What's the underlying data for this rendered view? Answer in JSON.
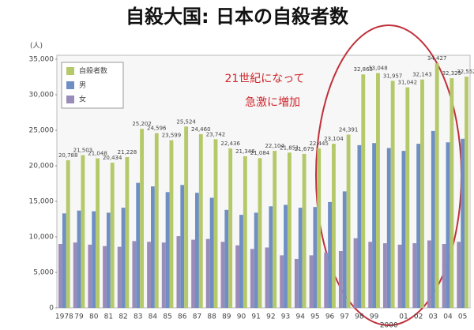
{
  "chart_data": {
    "type": "bar",
    "title": "自殺大国: 日本の自殺者数",
    "y_label": "(人)",
    "annotation": [
      "21世紀になって",
      "急激に増加"
    ],
    "categories": [
      "1978",
      "79",
      "80",
      "81",
      "82",
      "83",
      "84",
      "85",
      "86",
      "87",
      "88",
      "89",
      "90",
      "91",
      "92",
      "93",
      "94",
      "95",
      "96",
      "97",
      "98",
      "99",
      "2000",
      "01",
      "02",
      "03",
      "04",
      "05"
    ],
    "series": [
      {
        "name": "自殺者数",
        "color": "#b5c96a",
        "values": [
          20788,
          21503,
          21048,
          20434,
          21228,
          25202,
          24596,
          23599,
          25524,
          24460,
          23742,
          22436,
          21346,
          21084,
          22104,
          21851,
          21679,
          22445,
          23104,
          24391,
          32863,
          33048,
          31957,
          31042,
          32143,
          34427,
          32325,
          32552
        ],
        "value_labels": [
          "20,788",
          "21,503",
          "21,048",
          "20,434",
          "21,228",
          "25,202",
          "24,596",
          "23,599",
          "25,524",
          "24,460",
          "23,742",
          "22,436",
          "21,346",
          "21,084",
          "22,104",
          "21,851",
          "21,679",
          "22,445",
          "23,104",
          "24,391",
          "32,863",
          "33,048",
          "31,957",
          "31,042",
          "32,143",
          "34,427",
          "32,325",
          "32,552"
        ]
      },
      {
        "name": "男",
        "color": "#6f8fc4",
        "values": [
          13300,
          13700,
          13600,
          13400,
          14100,
          17600,
          17100,
          16300,
          17300,
          16200,
          15500,
          13800,
          13100,
          13400,
          14300,
          14500,
          14100,
          14200,
          14900,
          16400,
          22900,
          23200,
          22500,
          22100,
          23100,
          24900,
          23300,
          23800
        ]
      },
      {
        "name": "女",
        "color": "#9a8cb8",
        "values": [
          9000,
          9200,
          8900,
          8700,
          8600,
          9400,
          9300,
          9200,
          10100,
          9600,
          9700,
          9300,
          8800,
          8300,
          8500,
          7400,
          6900,
          7400,
          7800,
          8000,
          9800,
          9300,
          9100,
          8900,
          9100,
          9500,
          9000,
          9300
        ]
      }
    ],
    "ylim": [
      0,
      35000
    ],
    "yticks": [
      0,
      {
        "value": 5000,
        "label": "5,000"
      },
      {
        "value": 10000,
        "label": "10,000"
      },
      {
        "value": 15000,
        "label": "15,000"
      },
      {
        "value": 20000,
        "label": "20,000"
      },
      {
        "value": 25000,
        "label": "25,000"
      },
      {
        "value": 30000,
        "label": "30,000"
      },
      {
        "value": 35000,
        "label": "35,000"
      }
    ],
    "grid": false,
    "legend": "top-left"
  }
}
